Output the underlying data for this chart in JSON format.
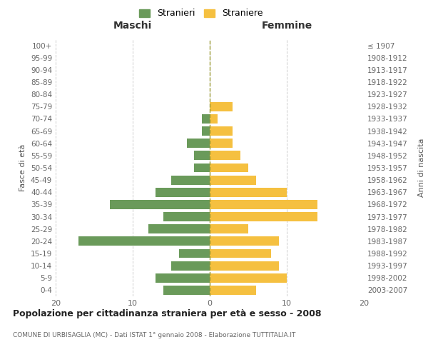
{
  "age_groups": [
    "0-4",
    "5-9",
    "10-14",
    "15-19",
    "20-24",
    "25-29",
    "30-34",
    "35-39",
    "40-44",
    "45-49",
    "50-54",
    "55-59",
    "60-64",
    "65-69",
    "70-74",
    "75-79",
    "80-84",
    "85-89",
    "90-94",
    "95-99",
    "100+"
  ],
  "birth_years": [
    "2003-2007",
    "1998-2002",
    "1993-1997",
    "1988-1992",
    "1983-1987",
    "1978-1982",
    "1973-1977",
    "1968-1972",
    "1963-1967",
    "1958-1962",
    "1953-1957",
    "1948-1952",
    "1943-1947",
    "1938-1942",
    "1933-1937",
    "1928-1932",
    "1923-1927",
    "1918-1922",
    "1913-1917",
    "1908-1912",
    "≤ 1907"
  ],
  "males": [
    6,
    7,
    5,
    4,
    17,
    8,
    6,
    13,
    7,
    5,
    2,
    2,
    3,
    1,
    1,
    0,
    0,
    0,
    0,
    0,
    0
  ],
  "females": [
    6,
    10,
    9,
    8,
    9,
    5,
    14,
    14,
    10,
    6,
    5,
    4,
    3,
    3,
    1,
    3,
    0,
    0,
    0,
    0,
    0
  ],
  "male_color": "#6a9a5a",
  "female_color": "#f5c040",
  "background_color": "#ffffff",
  "grid_color": "#cccccc",
  "title": "Popolazione per cittadinanza straniera per età e sesso - 2008",
  "subtitle": "COMUNE DI URBISAGLIA (MC) - Dati ISTAT 1° gennaio 2008 - Elaborazione TUTTITALIA.IT",
  "xlabel_left": "Maschi",
  "xlabel_right": "Femmine",
  "ylabel_left": "Fasce di età",
  "ylabel_right": "Anni di nascita",
  "xlim": 20,
  "legend_male": "Stranieri",
  "legend_female": "Straniere",
  "bar_height": 0.75
}
